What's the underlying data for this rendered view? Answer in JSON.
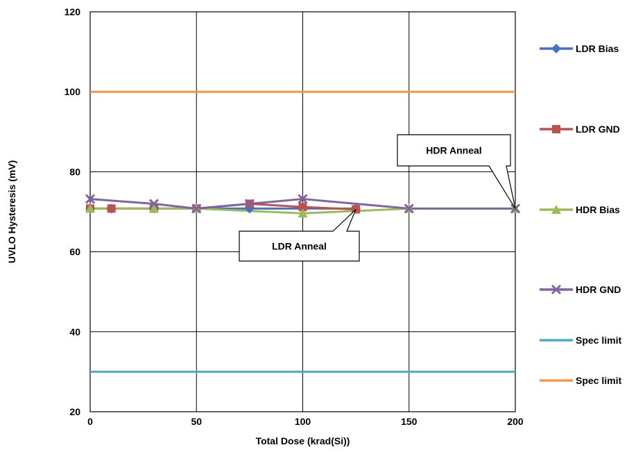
{
  "chart_data": {
    "type": "line",
    "title": "",
    "xlabel": "Total Dose (krad(Si))",
    "ylabel": "UVLO Hysteresis (mV)",
    "xlim": [
      0,
      200
    ],
    "ylim": [
      20,
      120
    ],
    "x_ticks": [
      0,
      50,
      100,
      150,
      200
    ],
    "y_ticks": [
      20,
      40,
      60,
      80,
      100,
      120
    ],
    "x_tick_labels": [
      "0",
      "50",
      "100",
      "150",
      "200"
    ],
    "y_tick_labels": [
      "20",
      "40",
      "60",
      "80",
      "100",
      "120"
    ],
    "grid": "vertical and horizontal major gridlines",
    "legend_position": "right",
    "series": [
      {
        "name": "LDR Bias",
        "color": "#4472C4",
        "marker": "diamond",
        "x": [
          0,
          10,
          30,
          50,
          75,
          100,
          125
        ],
        "y": [
          70.8,
          70.8,
          70.8,
          70.8,
          70.8,
          70.8,
          70.8
        ]
      },
      {
        "name": "LDR GND",
        "color": "#C0504D",
        "marker": "square",
        "x": [
          0,
          10,
          30,
          50,
          75,
          100,
          125
        ],
        "y": [
          70.8,
          70.8,
          70.8,
          70.8,
          72.0,
          71.2,
          70.6
        ]
      },
      {
        "name": "HDR Bias",
        "color": "#9BBB59",
        "marker": "triangle",
        "x": [
          0,
          30,
          50,
          100,
          150,
          200
        ],
        "y": [
          70.8,
          70.8,
          70.8,
          69.6,
          70.8,
          70.8
        ]
      },
      {
        "name": "HDR GND",
        "color": "#8064A2",
        "marker": "x",
        "x": [
          0,
          30,
          50,
          75,
          100,
          150,
          200
        ],
        "y": [
          73.2,
          72.0,
          70.8,
          72.0,
          73.2,
          70.8,
          70.8
        ]
      },
      {
        "name": "Spec limit",
        "color": "#4BACC6",
        "marker": "none",
        "x": [
          0,
          200
        ],
        "y": [
          30,
          30
        ]
      },
      {
        "name": "Spec limit",
        "color": "#F79646",
        "marker": "none",
        "x": [
          0,
          200
        ],
        "y": [
          100,
          100
        ]
      }
    ],
    "annotations": [
      {
        "text": "HDR Anneal",
        "points_to": [
          200,
          70.8
        ]
      },
      {
        "text": "LDR Anneal",
        "points_to": [
          125,
          70.6
        ]
      }
    ]
  }
}
